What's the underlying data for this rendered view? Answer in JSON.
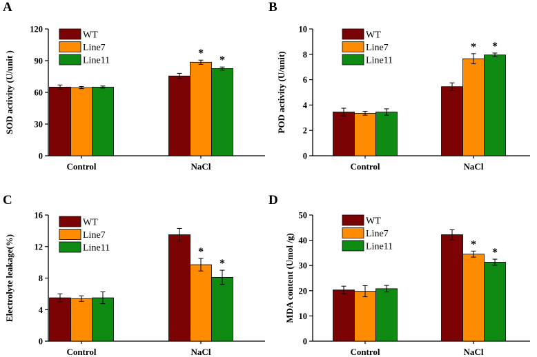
{
  "chart_data": [
    {
      "panel": "A",
      "type": "bar",
      "title": "",
      "xlabel": "",
      "ylabel": "SOD activity (U/unit )",
      "categories": [
        "Control",
        "NaCl"
      ],
      "ylim": [
        0,
        120
      ],
      "yticks": [
        "0",
        "30",
        "60",
        "90",
        "120"
      ],
      "grid": false,
      "legend_position": "top-left",
      "series": [
        {
          "name": "WT",
          "color": "#7b0303",
          "values": [
            65,
            75.5
          ],
          "errors": [
            2,
            2.5
          ],
          "significance": [
            "",
            ""
          ]
        },
        {
          "name": "Line7",
          "color": "#ff8c00",
          "values": [
            64.5,
            88.5
          ],
          "errors": [
            1,
            2
          ],
          "significance": [
            "",
            "*"
          ]
        },
        {
          "name": "Line11",
          "color": "#0f8b14",
          "values": [
            65,
            82.5
          ],
          "errors": [
            1,
            1.5
          ],
          "significance": [
            "",
            "*"
          ]
        }
      ]
    },
    {
      "panel": "B",
      "type": "bar",
      "title": "",
      "xlabel": "",
      "ylabel": "POD activity (U/unit)",
      "categories": [
        "Control",
        "NaCl"
      ],
      "ylim": [
        0,
        10
      ],
      "yticks": [
        "0",
        "2",
        "4",
        "6",
        "8",
        "10"
      ],
      "grid": false,
      "legend_position": "top-left",
      "series": [
        {
          "name": "WT",
          "color": "#7b0303",
          "values": [
            3.45,
            5.45
          ],
          "errors": [
            0.3,
            0.3
          ],
          "significance": [
            "",
            ""
          ]
        },
        {
          "name": "Line7",
          "color": "#ff8c00",
          "values": [
            3.35,
            7.65
          ],
          "errors": [
            0.15,
            0.4
          ],
          "significance": [
            "",
            "*"
          ]
        },
        {
          "name": "Line11",
          "color": "#0f8b14",
          "values": [
            3.45,
            7.95
          ],
          "errors": [
            0.25,
            0.15
          ],
          "significance": [
            "",
            "*"
          ]
        }
      ]
    },
    {
      "panel": "C",
      "type": "bar",
      "title": "",
      "xlabel": "",
      "ylabel": "Electrolyte leakage(%)",
      "categories": [
        "Control",
        "NaCl"
      ],
      "ylim": [
        0,
        16
      ],
      "yticks": [
        "0",
        "4",
        "8",
        "12",
        "16"
      ],
      "grid": false,
      "legend_position": "top-left",
      "series": [
        {
          "name": "WT",
          "color": "#7b0303",
          "values": [
            5.5,
            13.5
          ],
          "errors": [
            0.5,
            0.8
          ],
          "significance": [
            "",
            ""
          ]
        },
        {
          "name": "Line7",
          "color": "#ff8c00",
          "values": [
            5.4,
            9.7
          ],
          "errors": [
            0.35,
            0.8
          ],
          "significance": [
            "",
            "*"
          ]
        },
        {
          "name": "Line11",
          "color": "#0f8b14",
          "values": [
            5.5,
            8.1
          ],
          "errors": [
            0.75,
            0.9
          ],
          "significance": [
            "",
            "*"
          ]
        }
      ]
    },
    {
      "panel": "D",
      "type": "bar",
      "title": "",
      "xlabel": "",
      "ylabel": "MDA content (Umol /g)",
      "categories": [
        "Control",
        "NaCl"
      ],
      "ylim": [
        0,
        50
      ],
      "yticks": [
        "0",
        "10",
        "20",
        "30",
        "40",
        "50"
      ],
      "grid": false,
      "legend_position": "top-left",
      "series": [
        {
          "name": "WT",
          "color": "#7b0303",
          "values": [
            20.3,
            42.2
          ],
          "errors": [
            1.5,
            2
          ],
          "significance": [
            "",
            ""
          ]
        },
        {
          "name": "Line7",
          "color": "#ff8c00",
          "values": [
            19.8,
            34.5
          ],
          "errors": [
            2.2,
            1.2
          ],
          "significance": [
            "",
            "*"
          ]
        },
        {
          "name": "Line11",
          "color": "#0f8b14",
          "values": [
            20.8,
            31.3
          ],
          "errors": [
            1.3,
            1.2
          ],
          "significance": [
            "",
            "*"
          ]
        }
      ]
    }
  ]
}
